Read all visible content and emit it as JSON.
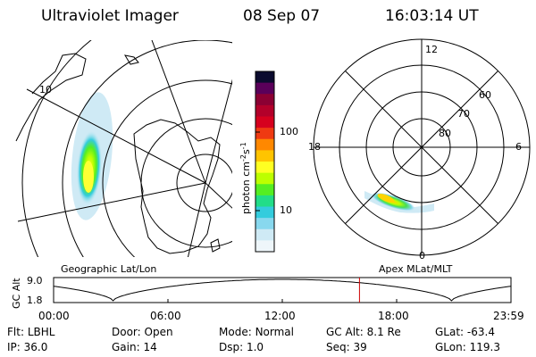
{
  "header": {
    "instrument": "Ultraviolet Imager",
    "date": "08 Sep 07",
    "time": "16:03:14 UT"
  },
  "geo_panel": {
    "caption": "Geographic Lat/Lon",
    "grid_label": "10"
  },
  "colorbar": {
    "unit_label": "photon cm",
    "unit_exp1": "-2",
    "unit_s": "s",
    "unit_exp2": "-1",
    "ticks": [
      "100",
      "10"
    ],
    "colors": [
      "#0b0b2e",
      "#5a005a",
      "#8b0033",
      "#b3002a",
      "#d6001e",
      "#ef3a12",
      "#ff8800",
      "#ffc400",
      "#ffff22",
      "#bdff00",
      "#55ee22",
      "#22dd88",
      "#33ccdd",
      "#88d8ee",
      "#cfeaf5",
      "#eef6fa"
    ]
  },
  "polar_panel": {
    "caption": "Apex MLat/MLT",
    "mlt_labels": {
      "top": "12",
      "left": "18",
      "right": "6",
      "bottom": "0"
    },
    "mlat_labels": [
      "60",
      "70",
      "80"
    ]
  },
  "timeline": {
    "ylabel": "GC Alt",
    "yticks": [
      "9.0",
      "1.8"
    ],
    "xticks": [
      "00:00",
      "06:00",
      "12:00",
      "18:00",
      "23:59"
    ],
    "marker_time": "16:03"
  },
  "status": {
    "rows": [
      [
        {
          "label": "Flt:",
          "value": "LBHL"
        },
        {
          "label": "Door:",
          "value": "Open"
        },
        {
          "label": "Mode:",
          "value": "Normal"
        },
        {
          "label": "GC Alt:",
          "value": "8.1 Re"
        },
        {
          "label": "GLat:",
          "value": "-63.4"
        }
      ],
      [
        {
          "label": "IP:",
          "value": "36.0"
        },
        {
          "label": "Gain:",
          "value": "14"
        },
        {
          "label": "Dsp:",
          "value": "1.0"
        },
        {
          "label": "Seq:",
          "value": "39"
        },
        {
          "label": "GLon:",
          "value": "119.3"
        }
      ]
    ]
  }
}
